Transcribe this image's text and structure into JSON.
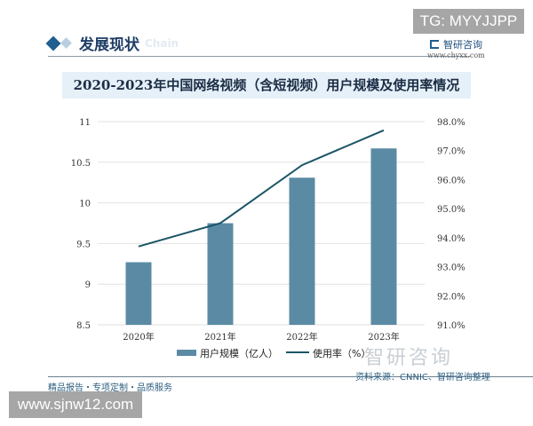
{
  "section": {
    "title": "发展现状",
    "subtitle_en": "Chain"
  },
  "overlay": {
    "tg_badge": "TG: MYYJJPP",
    "site_badge": "www.sjnw12.com"
  },
  "brand": {
    "name": "智研咨询",
    "url": "www.chyxx.com",
    "watermark": "智研咨询"
  },
  "footer": {
    "tagline": "精品报告・专项定制・品质服务",
    "source": "资料来源：CNNIC、智研咨询整理"
  },
  "colors": {
    "bar": "#5b8ba4",
    "line": "#1b5566",
    "title_bg": "#e6f0f8"
  },
  "chart_data": {
    "type": "bar+line",
    "title": "2020-2023年中国网络视频（含短视频）用户规模及使用率情况",
    "categories": [
      "2020年",
      "2021年",
      "2022年",
      "2023年"
    ],
    "series": [
      {
        "name": "用户规模（亿人）",
        "type": "bar",
        "axis": "left",
        "values": [
          9.27,
          9.75,
          10.31,
          10.67
        ]
      },
      {
        "name": "使用率（%）",
        "type": "line",
        "axis": "right",
        "values": [
          93.7,
          94.5,
          96.5,
          97.7
        ]
      }
    ],
    "left_axis": {
      "ticks": [
        "11",
        "10.5",
        "10",
        "9.5",
        "9",
        "8.5"
      ],
      "ylim": [
        8.5,
        11
      ]
    },
    "right_axis": {
      "ticks": [
        "98.0%",
        "97.0%",
        "96.0%",
        "95.0%",
        "94.0%",
        "93.0%",
        "92.0%",
        "91.0%"
      ],
      "ylim": [
        91,
        98
      ]
    },
    "legend": [
      "用户规模（亿人）",
      "使用率（%）"
    ],
    "legend_position": "bottom",
    "grid": true
  }
}
